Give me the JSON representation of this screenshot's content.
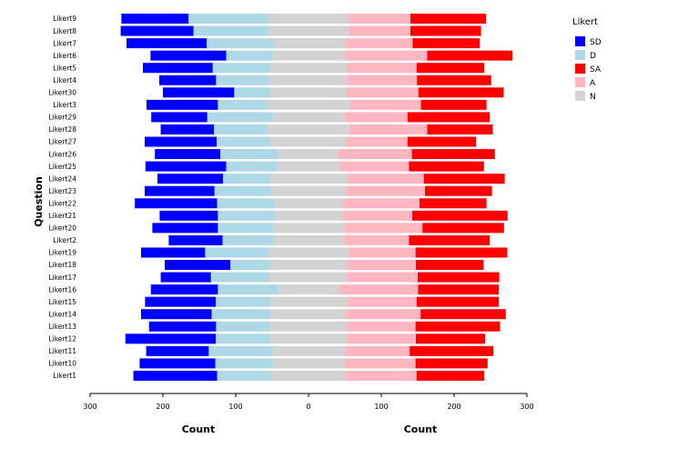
{
  "chart_data": {
    "type": "bar",
    "orientation": "horizontal-diverging-stacked",
    "ylabel": "Question",
    "xlabels": [
      "Count",
      "Count"
    ],
    "xlim": [
      -300,
      300
    ],
    "xticks": [
      -300,
      -200,
      -100,
      0,
      100,
      200,
      300
    ],
    "xtick_labels": [
      "300",
      "200",
      "100",
      "0",
      "100",
      "200",
      "300"
    ],
    "legend": {
      "title": "Likert",
      "position": "right",
      "entries": [
        {
          "key": "SD",
          "label": "SD",
          "color": "#0000ff"
        },
        {
          "key": "D",
          "label": "D",
          "color": "#add8e6"
        },
        {
          "key": "SA",
          "label": "SA",
          "color": "#ff0000"
        },
        {
          "key": "A",
          "label": "A",
          "color": "#ffb6c1"
        },
        {
          "key": "N",
          "label": "N",
          "color": "#d3d3d3"
        }
      ]
    },
    "categories": [
      "Likert9",
      "Likert8",
      "Likert7",
      "Likert6",
      "Likert5",
      "Likert4",
      "Likert30",
      "Likert3",
      "Likert29",
      "Likert28",
      "Likert27",
      "Likert26",
      "Likert25",
      "Likert24",
      "Likert23",
      "Likert22",
      "Likert21",
      "Likert20",
      "Likert2",
      "Likert19",
      "Likert18",
      "Likert17",
      "Likert16",
      "Likert15",
      "Likert14",
      "Likert13",
      "Likert12",
      "Likert11",
      "Likert10",
      "Likert1"
    ],
    "series": [
      {
        "name": "SD",
        "side": "left",
        "values": [
          92,
          100,
          110,
          104,
          96,
          78,
          98,
          98,
          77,
          73,
          99,
          90,
          111,
          90,
          96,
          113,
          80,
          90,
          74,
          88,
          90,
          69,
          92,
          97,
          97,
          92,
          124,
          86,
          104,
          115
        ]
      },
      {
        "name": "D",
        "side": "left",
        "values": [
          110,
          103,
          90,
          63,
          79,
          73,
          50,
          67,
          90,
          74,
          74,
          80,
          70,
          65,
          77,
          78,
          78,
          75,
          70,
          87,
          55,
          80,
          82,
          75,
          81,
          74,
          75,
          87,
          78,
          74
        ]
      },
      {
        "name": "N",
        "side": "center",
        "values": [
          110,
          110,
          100,
          100,
          105,
          108,
          104,
          115,
          98,
          112,
          104,
          82,
          86,
          105,
          104,
          95,
          93,
          99,
          96,
          110,
          105,
          108,
          85,
          105,
          104,
          106,
          105,
          100,
          100,
          103
        ]
      },
      {
        "name": "A",
        "side": "right",
        "values": [
          85,
          85,
          93,
          113,
          96,
          95,
          99,
          97,
          87,
          107,
          84,
          101,
          95,
          106,
          108,
          105,
          96,
          107,
          90,
          92,
          95,
          96,
          108,
          96,
          102,
          94,
          95,
          89,
          97,
          97
        ]
      },
      {
        "name": "SA",
        "side": "right",
        "values": [
          104,
          97,
          92,
          117,
          93,
          102,
          117,
          90,
          113,
          90,
          94,
          114,
          103,
          111,
          92,
          92,
          131,
          112,
          111,
          126,
          93,
          112,
          111,
          113,
          117,
          116,
          95,
          115,
          99,
          93
        ]
      }
    ]
  }
}
